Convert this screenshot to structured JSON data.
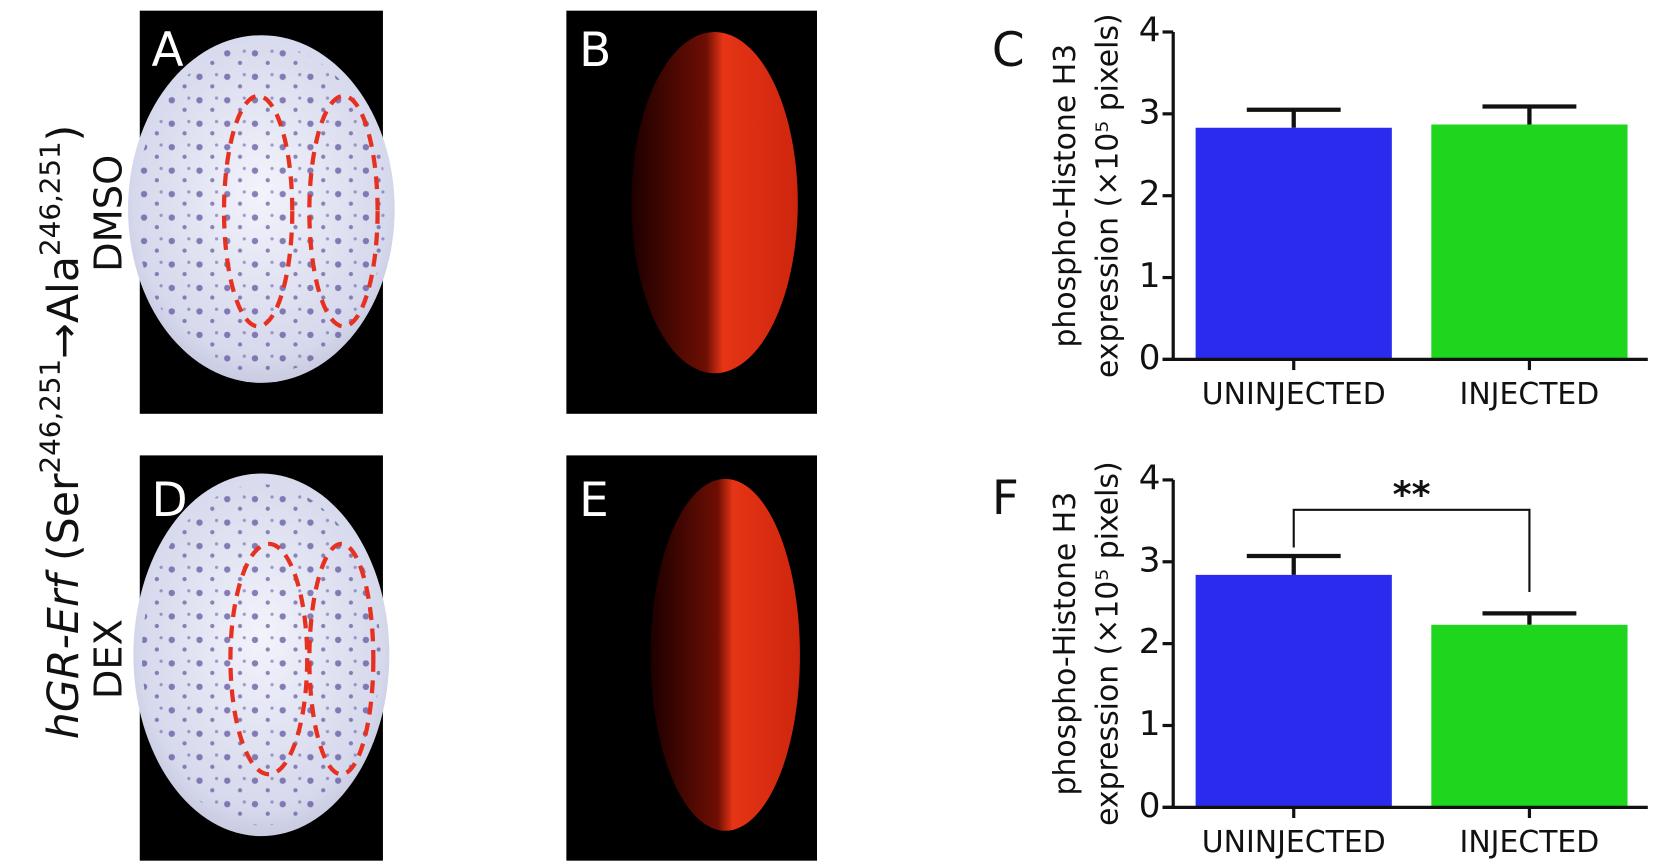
{
  "side_label": [
    "hGR-Erf",
    " (Ser",
    "246,251",
    "→",
    "Ala",
    "246,251",
    ")"
  ],
  "row_labels": [
    "DMSO",
    "DEX"
  ],
  "panels": [
    {
      "label": "A"
    },
    {
      "label": "B"
    },
    {
      "label": "D"
    },
    {
      "label": "E"
    }
  ],
  "chart_data": [
    {
      "type": "bar",
      "panel_label": "C",
      "ylabel": [
        "phospho-Histone H3",
        "expression (×10⁵ pixels)"
      ],
      "categories": [
        "UNINJECTED",
        "INJECTED"
      ],
      "values": [
        2.83,
        2.87
      ],
      "errors": [
        0.22,
        0.22
      ],
      "colors": [
        "#2b2bf0",
        "#1fd61f"
      ],
      "ylim": [
        0,
        4
      ],
      "yticks": [
        0,
        1,
        2,
        3,
        4
      ]
    },
    {
      "type": "bar",
      "panel_label": "F",
      "ylabel": [
        "phospho-Histone H3",
        "expression (×10⁵ pixels)"
      ],
      "categories": [
        "UNINJECTED",
        "INJECTED"
      ],
      "values": [
        2.84,
        2.23
      ],
      "errors": [
        0.23,
        0.14
      ],
      "colors": [
        "#2b2bf0",
        "#1fd61f"
      ],
      "ylim": [
        0,
        4
      ],
      "yticks": [
        0,
        1,
        2,
        3,
        4
      ],
      "annotation": "**"
    }
  ]
}
